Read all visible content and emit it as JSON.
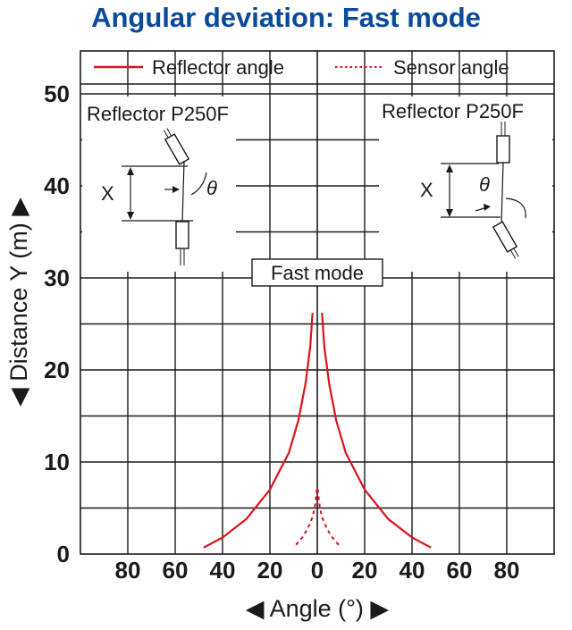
{
  "chart_data": {
    "type": "line",
    "title": "Angular deviation: Fast mode",
    "xlabel": "◀ Angle (°) ▶",
    "ylabel": "◀ Distance Y (m) ▶",
    "x_tick_labels": [
      "80",
      "60",
      "40",
      "20",
      "0",
      "20",
      "40",
      "60",
      "80"
    ],
    "y_tick_labels": [
      "0",
      "10",
      "20",
      "30",
      "40",
      "50"
    ],
    "xlim": [
      -100,
      100
    ],
    "ylim": [
      0,
      50
    ],
    "grid": true,
    "legend_position": "top",
    "annotation": "Fast mode",
    "inset_labels": {
      "left_title": "Reflector P250F",
      "right_title": "Reflector P250F",
      "left_x": "X",
      "right_x": "X",
      "left_theta": "θ",
      "right_theta": "θ"
    },
    "series": [
      {
        "name": "Reflector angle",
        "style": "solid",
        "color": "#d7141e",
        "x": [
          -48,
          -40,
          -30,
          -20,
          -12,
          -8,
          -5,
          -3,
          -2
        ],
        "y": [
          0.7,
          1.8,
          3.8,
          7.0,
          11.0,
          14.5,
          18.5,
          22.5,
          26.2
        ],
        "mirror": true
      },
      {
        "name": "Sensor angle",
        "style": "dotted",
        "color": "#d7141e",
        "x": [
          -9,
          -6,
          -4,
          -2,
          -1,
          0
        ],
        "y": [
          1.0,
          1.9,
          2.8,
          4.0,
          5.2,
          7.5
        ],
        "mirror": true
      }
    ]
  }
}
